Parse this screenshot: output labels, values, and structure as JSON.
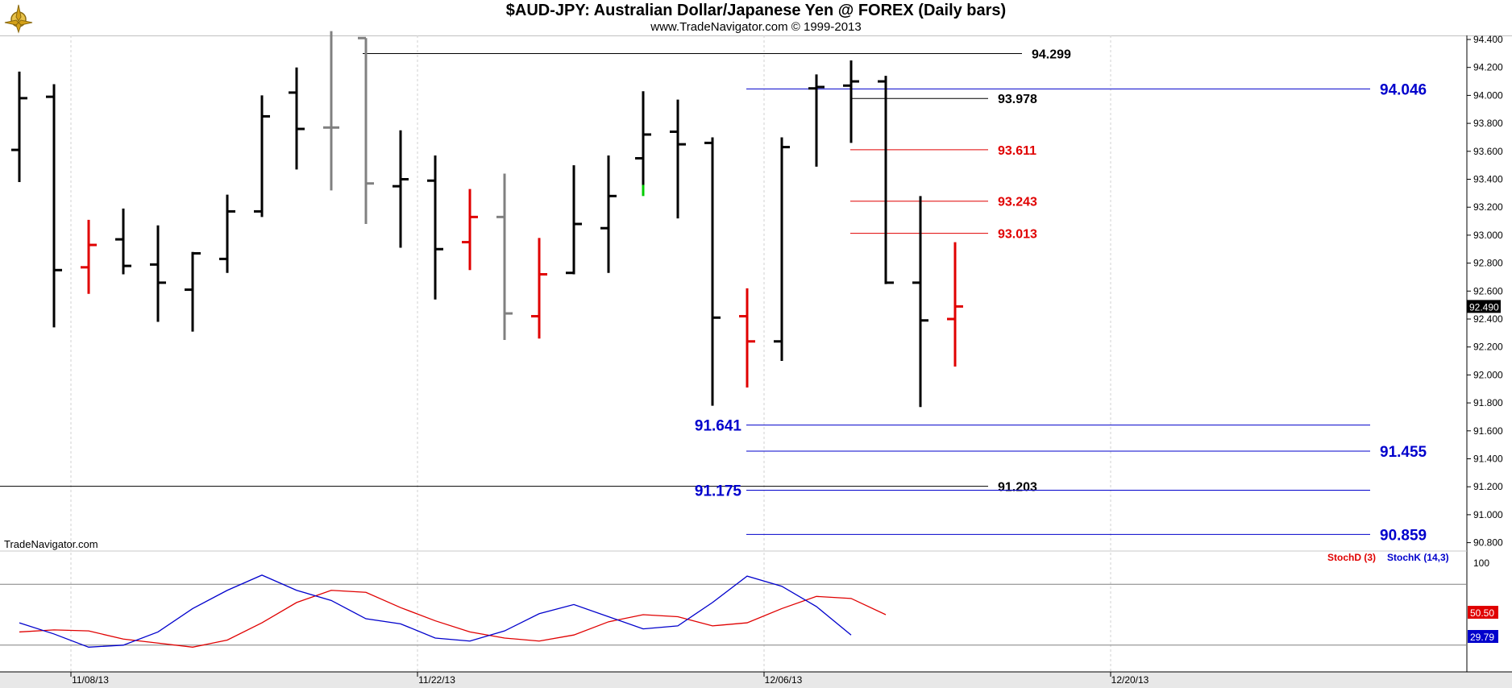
{
  "title": "$AUD-JPY:  Australian Dollar/Japanese Yen @ FOREX  (Daily bars)",
  "subtitle": "www.TradeNavigator.com © 1999-2013",
  "watermark": "TradeNavigator.com",
  "logo_icon": "compass-rose-logo-icon",
  "colors": {
    "background": "#ffffff",
    "bar_up": "#000000",
    "bar_down": "#e00000",
    "bar_neutral": "#808080",
    "level_blue": "#0000cc",
    "level_red": "#e00000",
    "level_black": "#000000",
    "grid": "#d0d0d0",
    "last_price_bg": "#000000"
  },
  "chart_data": [
    {
      "type": "ohlc",
      "title": "$AUD-JPY:  Australian Dollar/Japanese Yen @ FOREX  (Daily bars)",
      "xlabel": "",
      "ylabel": "",
      "ylim": [
        90.8,
        94.4
      ],
      "grid": true,
      "x_tick_labels": [
        "11/08/13",
        "11/22/13",
        "12/06/13",
        "12/20/13"
      ],
      "y_tick_labels": [
        "90.800",
        "91.000",
        "91.200",
        "91.400",
        "91.600",
        "91.800",
        "92.000",
        "92.200",
        "92.400",
        "92.600",
        "92.800",
        "93.000",
        "93.200",
        "93.400",
        "93.600",
        "93.800",
        "94.000",
        "94.200",
        "94.400"
      ],
      "last_price": "92.490",
      "bars": [
        {
          "o": 93.61,
          "h": 94.17,
          "l": 93.38,
          "c": 93.98,
          "col": "black"
        },
        {
          "o": 93.99,
          "h": 94.08,
          "l": 92.34,
          "c": 92.75,
          "col": "black"
        },
        {
          "o": 92.77,
          "h": 93.11,
          "l": 92.58,
          "c": 92.93,
          "col": "red"
        },
        {
          "o": 92.97,
          "h": 93.19,
          "l": 92.72,
          "c": 92.78,
          "col": "black"
        },
        {
          "o": 92.79,
          "h": 93.07,
          "l": 92.38,
          "c": 92.66,
          "col": "black"
        },
        {
          "o": 92.61,
          "h": 92.88,
          "l": 92.31,
          "c": 92.87,
          "col": "black"
        },
        {
          "o": 92.83,
          "h": 93.29,
          "l": 92.73,
          "c": 93.17,
          "col": "black"
        },
        {
          "o": 93.17,
          "h": 94.0,
          "l": 93.13,
          "c": 93.85,
          "col": "black"
        },
        {
          "o": 94.02,
          "h": 94.2,
          "l": 93.47,
          "c": 93.76,
          "col": "black"
        },
        {
          "o": 93.77,
          "h": 94.46,
          "l": 93.32,
          "c": 93.77,
          "col": "gray"
        },
        {
          "o": 94.41,
          "h": 94.41,
          "l": 93.08,
          "c": 93.37,
          "col": "gray"
        },
        {
          "o": 93.35,
          "h": 93.75,
          "l": 92.91,
          "c": 93.4,
          "col": "black"
        },
        {
          "o": 93.39,
          "h": 93.57,
          "l": 92.54,
          "c": 92.9,
          "col": "black"
        },
        {
          "o": 92.95,
          "h": 93.33,
          "l": 92.75,
          "c": 93.13,
          "col": "red"
        },
        {
          "o": 93.13,
          "h": 93.44,
          "l": 92.25,
          "c": 92.44,
          "col": "gray"
        },
        {
          "o": 92.42,
          "h": 92.98,
          "l": 92.26,
          "c": 92.72,
          "col": "red"
        },
        {
          "o": 92.73,
          "h": 93.5,
          "l": 92.72,
          "c": 93.08,
          "col": "black"
        },
        {
          "o": 93.05,
          "h": 93.57,
          "l": 92.73,
          "c": 93.28,
          "col": "black"
        },
        {
          "o": 93.55,
          "h": 94.03,
          "l": 93.29,
          "c": 93.72,
          "col": "black"
        },
        {
          "o": 93.74,
          "h": 93.97,
          "l": 93.12,
          "c": 93.65,
          "col": "black"
        },
        {
          "o": 93.66,
          "h": 93.7,
          "l": 91.78,
          "c": 92.41,
          "col": "black"
        },
        {
          "o": 92.42,
          "h": 92.62,
          "l": 91.91,
          "c": 92.24,
          "col": "red"
        },
        {
          "o": 92.24,
          "h": 93.7,
          "l": 92.1,
          "c": 93.63,
          "col": "black"
        },
        {
          "o": 94.05,
          "h": 94.15,
          "l": 93.49,
          "c": 94.06,
          "col": "black"
        },
        {
          "o": 94.07,
          "h": 94.25,
          "l": 93.66,
          "c": 94.1,
          "col": "black"
        },
        {
          "o": 94.1,
          "h": 94.14,
          "l": 92.65,
          "c": 92.66,
          "col": "black"
        },
        {
          "o": 92.66,
          "h": 93.28,
          "l": 91.77,
          "c": 92.39,
          "col": "black"
        },
        {
          "o": 92.4,
          "h": 92.95,
          "l": 92.06,
          "c": 92.49,
          "col": "red"
        }
      ],
      "levels": [
        {
          "value": 94.299,
          "label": "94.299",
          "color": "black"
        },
        {
          "value": 94.046,
          "label": "94.046",
          "color": "blue"
        },
        {
          "value": 93.978,
          "label": "93.978",
          "color": "black"
        },
        {
          "value": 93.611,
          "label": "93.611",
          "color": "red"
        },
        {
          "value": 93.243,
          "label": "93.243",
          "color": "red"
        },
        {
          "value": 93.013,
          "label": "93.013",
          "color": "red"
        },
        {
          "value": 91.641,
          "label": "91.641",
          "color": "blue"
        },
        {
          "value": 91.455,
          "label": "91.455",
          "color": "blue"
        },
        {
          "value": 91.203,
          "label": "91.203",
          "color": "black"
        },
        {
          "value": 91.175,
          "label": "91.175",
          "color": "blue"
        },
        {
          "value": 90.859,
          "label": "90.859",
          "color": "blue"
        }
      ]
    },
    {
      "type": "line",
      "title": "",
      "ylim": [
        0,
        100
      ],
      "y_tick_labels": [
        "100"
      ],
      "legend": [
        "StochD (3)",
        "StochK (14,3)"
      ],
      "legend_position": "top-right",
      "reference_lines": [
        80,
        20
      ],
      "series": [
        {
          "name": "StochD (3)",
          "color": "red",
          "last_label": "50.50",
          "values": [
            33,
            35,
            34,
            26,
            22,
            18,
            25,
            42,
            62,
            74,
            72,
            57,
            44,
            33,
            27,
            24,
            30,
            43,
            50,
            48,
            39,
            42,
            56,
            68,
            66,
            50
          ]
        },
        {
          "name": "StochK (14,3)",
          "color": "blue",
          "last_label": "29.79",
          "values": [
            42,
            31,
            18,
            20,
            33,
            56,
            74,
            89,
            74,
            64,
            46,
            41,
            27,
            24,
            34,
            51,
            60,
            48,
            36,
            39,
            62,
            88,
            78,
            58,
            30
          ]
        }
      ]
    }
  ]
}
